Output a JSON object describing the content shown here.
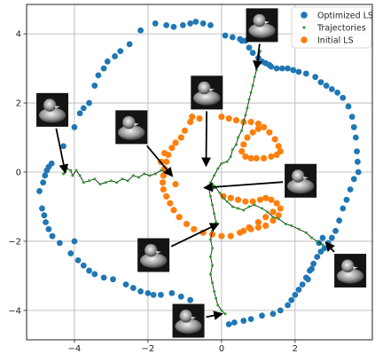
{
  "chart_data": {
    "type": "scatter",
    "xlim": [
      -5.3,
      4.1
    ],
    "ylim": [
      -4.85,
      4.85
    ],
    "x_ticks": [
      -4,
      -2,
      0,
      2
    ],
    "x_tick_labels": [
      "−4",
      "−2",
      "0",
      "2"
    ],
    "y_ticks": [
      -4,
      -2,
      0,
      2,
      4
    ],
    "y_tick_labels": [
      "−4",
      "−2",
      "0",
      "2",
      "4"
    ],
    "grid": true,
    "legend_position": "top-right",
    "series": [
      {
        "name": "Optimized LS",
        "color": "#1f77b4",
        "marker": "circle",
        "points": [
          [
            -4.95,
            -0.55
          ],
          [
            -4.85,
            -0.3
          ],
          [
            -4.8,
            -0.1
          ],
          [
            -4.75,
            0.05
          ],
          [
            -4.7,
            0.15
          ],
          [
            -4.62,
            0.25
          ],
          [
            -4.88,
            -1.05
          ],
          [
            -4.82,
            -1.25
          ],
          [
            -4.78,
            -1.45
          ],
          [
            -4.7,
            -1.65
          ],
          [
            -4.6,
            -1.85
          ],
          [
            -4.4,
            -2.05
          ],
          [
            -4.1,
            -2.35
          ],
          [
            -3.9,
            -2.55
          ],
          [
            -3.75,
            -2.7
          ],
          [
            -3.6,
            -2.85
          ],
          [
            -3.45,
            -2.95
          ],
          [
            -3.2,
            -3.05
          ],
          [
            -2.95,
            -3.1
          ],
          [
            -2.6,
            -3.25
          ],
          [
            -2.4,
            -3.35
          ],
          [
            -2.2,
            -3.45
          ],
          [
            -2.0,
            -3.5
          ],
          [
            -1.85,
            -3.55
          ],
          [
            -1.65,
            -3.55
          ],
          [
            -1.35,
            -3.5
          ],
          [
            -1.1,
            -3.6
          ],
          [
            -0.85,
            -3.7
          ],
          [
            -4.3,
            0.75
          ],
          [
            -4.0,
            1.3
          ],
          [
            -3.85,
            1.7
          ],
          [
            -3.75,
            1.85
          ],
          [
            -3.6,
            2.0
          ],
          [
            -3.45,
            2.5
          ],
          [
            -3.35,
            2.8
          ],
          [
            -3.2,
            3.0
          ],
          [
            -3.1,
            3.2
          ],
          [
            -2.9,
            3.35
          ],
          [
            -2.75,
            3.5
          ],
          [
            -2.5,
            3.7
          ],
          [
            -2.2,
            4.1
          ],
          [
            -1.8,
            4.3
          ],
          [
            -1.5,
            4.25
          ],
          [
            -1.3,
            4.2
          ],
          [
            -1.05,
            4.25
          ],
          [
            -0.85,
            4.3
          ],
          [
            -0.7,
            4.35
          ],
          [
            -0.5,
            4.3
          ],
          [
            -0.3,
            4.25
          ],
          [
            0.1,
            3.95
          ],
          [
            0.3,
            3.9
          ],
          [
            0.5,
            3.85
          ],
          [
            0.65,
            3.8
          ],
          [
            0.75,
            3.6
          ],
          [
            0.85,
            3.45
          ],
          [
            1.0,
            3.3
          ],
          [
            1.1,
            3.2
          ],
          [
            1.2,
            3.15
          ],
          [
            1.35,
            3.05
          ],
          [
            1.5,
            3.0
          ],
          [
            1.65,
            3.0
          ],
          [
            1.8,
            3.0
          ],
          [
            1.95,
            2.95
          ],
          [
            2.1,
            2.9
          ],
          [
            2.3,
            2.85
          ],
          [
            2.55,
            2.75
          ],
          [
            2.7,
            2.6
          ],
          [
            2.85,
            2.5
          ],
          [
            3.0,
            2.4
          ],
          [
            3.15,
            2.3
          ],
          [
            3.3,
            2.15
          ],
          [
            3.45,
            1.9
          ],
          [
            3.55,
            1.6
          ],
          [
            3.6,
            1.3
          ],
          [
            3.65,
            1.0
          ],
          [
            3.68,
            0.6
          ],
          [
            3.7,
            0.3
          ],
          [
            3.72,
            0.0
          ],
          [
            3.6,
            -0.2
          ],
          [
            3.5,
            -0.5
          ],
          [
            3.4,
            -0.8
          ],
          [
            3.3,
            -1.05
          ],
          [
            3.2,
            -1.4
          ],
          [
            3.1,
            -1.7
          ],
          [
            3.0,
            -1.9
          ],
          [
            2.9,
            -2.05
          ],
          [
            2.8,
            -2.2
          ],
          [
            2.7,
            -2.3
          ],
          [
            2.6,
            -2.45
          ],
          [
            2.5,
            -2.65
          ],
          [
            2.4,
            -2.85
          ],
          [
            2.3,
            -3.05
          ],
          [
            2.2,
            -3.25
          ],
          [
            2.1,
            -3.4
          ],
          [
            2.0,
            -3.55
          ],
          [
            1.9,
            -3.7
          ],
          [
            1.8,
            -3.85
          ],
          [
            1.6,
            -4.0
          ],
          [
            1.4,
            -4.1
          ],
          [
            1.1,
            -4.15
          ],
          [
            0.8,
            -4.25
          ],
          [
            0.6,
            -4.3
          ],
          [
            0.35,
            -4.35
          ],
          [
            0.2,
            -4.4
          ],
          [
            -4.6,
            -1.85
          ],
          [
            -4.0,
            -2.0
          ],
          [
            2.65,
            -2.05
          ],
          [
            2.75,
            -1.9
          ],
          [
            2.45,
            -2.8
          ],
          [
            2.35,
            -3.1
          ],
          [
            1.3,
            3.1
          ],
          [
            0.55,
            3.8
          ]
        ]
      },
      {
        "name": "Trajectories",
        "color": "#2ca02c",
        "marker": "small-dot"
      },
      {
        "name": "Initial LS",
        "color": "#ff7f0e",
        "marker": "circle",
        "points": [
          [
            -0.8,
            1.6
          ],
          [
            -0.85,
            1.45
          ],
          [
            -1.0,
            1.2
          ],
          [
            -1.1,
            1.0
          ],
          [
            -1.25,
            0.85
          ],
          [
            -1.35,
            0.7
          ],
          [
            -1.45,
            0.5
          ],
          [
            -1.5,
            0.3
          ],
          [
            -1.55,
            0.1
          ],
          [
            -1.58,
            -0.1
          ],
          [
            -1.6,
            -0.3
          ],
          [
            -1.58,
            -0.5
          ],
          [
            -1.5,
            -0.7
          ],
          [
            -1.4,
            -0.9
          ],
          [
            -1.3,
            -1.1
          ],
          [
            -1.15,
            -1.3
          ],
          [
            -0.95,
            -1.5
          ],
          [
            -0.75,
            -1.65
          ],
          [
            -0.5,
            -1.75
          ],
          [
            -0.25,
            -1.8
          ],
          [
            0.0,
            -1.85
          ],
          [
            0.25,
            -1.85
          ],
          [
            0.5,
            -1.75
          ],
          [
            0.75,
            -1.6
          ],
          [
            1.0,
            -1.45
          ],
          [
            1.2,
            -1.3
          ],
          [
            1.4,
            -1.15
          ],
          [
            -0.6,
            1.55
          ],
          [
            0.0,
            1.6
          ],
          [
            0.2,
            1.55
          ],
          [
            0.4,
            1.5
          ],
          [
            0.6,
            1.45
          ],
          [
            0.8,
            1.45
          ],
          [
            1.0,
            1.4
          ],
          [
            1.15,
            1.3
          ],
          [
            1.3,
            1.15
          ],
          [
            1.45,
            0.95
          ],
          [
            1.55,
            0.75
          ],
          [
            1.6,
            0.6
          ],
          [
            1.5,
            0.5
          ],
          [
            1.35,
            0.45
          ],
          [
            1.15,
            0.4
          ],
          [
            0.95,
            0.4
          ],
          [
            0.8,
            0.4
          ],
          [
            0.65,
            0.45
          ],
          [
            0.55,
            0.6
          ],
          [
            0.6,
            0.8
          ],
          [
            0.7,
            1.0
          ],
          [
            0.85,
            1.15
          ],
          [
            1.0,
            1.25
          ],
          [
            0.05,
            -0.7
          ],
          [
            0.25,
            -0.75
          ],
          [
            0.45,
            -0.8
          ],
          [
            0.65,
            -0.85
          ],
          [
            0.85,
            -0.85
          ],
          [
            1.05,
            -0.8
          ],
          [
            1.2,
            -0.75
          ],
          [
            1.35,
            -0.8
          ],
          [
            1.5,
            -0.9
          ],
          [
            1.6,
            -1.05
          ],
          [
            1.55,
            -1.25
          ],
          [
            1.4,
            -1.4
          ],
          [
            1.2,
            -1.55
          ],
          [
            1.0,
            -1.6
          ],
          [
            0.8,
            -1.65
          ],
          [
            0.6,
            -1.7
          ],
          [
            -1.65,
            0.3
          ],
          [
            -1.55,
            0.55
          ],
          [
            -1.25,
            -0.35
          ]
        ]
      }
    ],
    "trajectories": [
      [
        [
          -4.3,
          -0.05
        ],
        [
          -4.2,
          0.1
        ],
        [
          -4.1,
          0.05
        ],
        [
          -4.05,
          -0.1
        ],
        [
          -3.95,
          0.05
        ],
        [
          -3.85,
          -0.1
        ],
        [
          -3.75,
          -0.3
        ],
        [
          -3.6,
          -0.25
        ],
        [
          -3.45,
          -0.2
        ],
        [
          -3.3,
          -0.35
        ],
        [
          -3.15,
          -0.3
        ],
        [
          -3.0,
          -0.25
        ],
        [
          -2.85,
          -0.3
        ],
        [
          -2.7,
          -0.2
        ],
        [
          -2.55,
          -0.25
        ],
        [
          -2.4,
          -0.1
        ],
        [
          -2.25,
          -0.15
        ],
        [
          -2.1,
          -0.05
        ],
        [
          -1.95,
          -0.1
        ],
        [
          -1.8,
          -0.05
        ],
        [
          -1.65,
          0.05
        ],
        [
          -1.5,
          0.0
        ],
        [
          -1.4,
          0.0
        ]
      ],
      [
        [
          -0.35,
          -0.4
        ],
        [
          -0.25,
          -0.5
        ],
        [
          -0.15,
          -0.45
        ],
        [
          -0.05,
          -0.6
        ],
        [
          0.05,
          -0.75
        ],
        [
          0.15,
          -0.85
        ],
        [
          0.3,
          -1.0
        ],
        [
          0.45,
          -1.05
        ],
        [
          0.6,
          -1.1
        ],
        [
          0.75,
          -1.0
        ],
        [
          0.9,
          -0.95
        ],
        [
          1.1,
          -1.05
        ],
        [
          1.25,
          -1.15
        ],
        [
          1.4,
          -1.3
        ],
        [
          1.55,
          -1.35
        ],
        [
          1.75,
          -1.5
        ],
        [
          1.9,
          -1.55
        ],
        [
          2.1,
          -1.65
        ],
        [
          2.3,
          -1.75
        ],
        [
          2.45,
          -1.9
        ],
        [
          2.6,
          -2.0
        ],
        [
          2.75,
          -2.1
        ]
      ],
      [
        [
          -0.35,
          -0.45
        ],
        [
          -0.3,
          -0.3
        ],
        [
          -0.2,
          -0.1
        ],
        [
          -0.1,
          0.1
        ],
        [
          0.0,
          0.25
        ],
        [
          0.15,
          0.3
        ],
        [
          0.25,
          0.45
        ],
        [
          0.3,
          0.65
        ],
        [
          0.4,
          0.8
        ],
        [
          0.45,
          1.0
        ],
        [
          0.55,
          1.2
        ],
        [
          0.6,
          1.45
        ],
        [
          0.65,
          1.65
        ],
        [
          0.7,
          1.85
        ],
        [
          0.75,
          2.1
        ],
        [
          0.8,
          2.3
        ],
        [
          0.85,
          2.5
        ],
        [
          0.9,
          2.75
        ],
        [
          0.95,
          2.95
        ],
        [
          1.0,
          3.2
        ],
        [
          1.05,
          3.5
        ]
      ],
      [
        [
          -0.35,
          -0.45
        ],
        [
          -0.3,
          -0.7
        ],
        [
          -0.25,
          -0.95
        ],
        [
          -0.2,
          -1.2
        ],
        [
          -0.15,
          -1.45
        ],
        [
          -0.25,
          -1.7
        ],
        [
          -0.3,
          -1.95
        ],
        [
          -0.25,
          -2.2
        ],
        [
          -0.3,
          -2.45
        ],
        [
          -0.25,
          -2.7
        ],
        [
          -0.3,
          -2.95
        ],
        [
          -0.25,
          -3.2
        ],
        [
          -0.2,
          -3.45
        ],
        [
          -0.15,
          -3.65
        ],
        [
          -0.1,
          -3.85
        ],
        [
          0.0,
          -4.0
        ],
        [
          0.1,
          -4.1
        ]
      ],
      [
        [
          -0.3,
          -0.45
        ],
        [
          -0.25,
          -0.35
        ],
        [
          -0.2,
          -0.4
        ]
      ]
    ],
    "annotations": [
      {
        "image": "duck-thumbnail",
        "x": -4.6,
        "y": 1.8,
        "arrow_to": [
          -4.25,
          0.0
        ]
      },
      {
        "image": "duck-thumbnail",
        "x": -2.45,
        "y": 1.3,
        "arrow_to": [
          -1.35,
          -0.1
        ]
      },
      {
        "image": "duck-thumbnail",
        "x": -0.4,
        "y": 2.3,
        "arrow_to": [
          -0.42,
          0.2
        ]
      },
      {
        "image": "duck-thumbnail",
        "x": 1.1,
        "y": 4.25,
        "arrow_to": [
          0.95,
          3.0
        ]
      },
      {
        "image": "duck-thumbnail",
        "x": 2.15,
        "y": -0.25,
        "arrow_to": [
          -0.45,
          -0.45
        ]
      },
      {
        "image": "duck-thumbnail",
        "x": -1.85,
        "y": -2.4,
        "arrow_to": [
          -0.1,
          -1.5
        ]
      },
      {
        "image": "duck-thumbnail",
        "x": 3.5,
        "y": -2.85,
        "arrow_to": [
          2.85,
          -2.05
        ]
      },
      {
        "image": "duck-thumbnail",
        "x": -0.9,
        "y": -4.3,
        "arrow_to": [
          0.0,
          -4.1
        ]
      }
    ]
  }
}
